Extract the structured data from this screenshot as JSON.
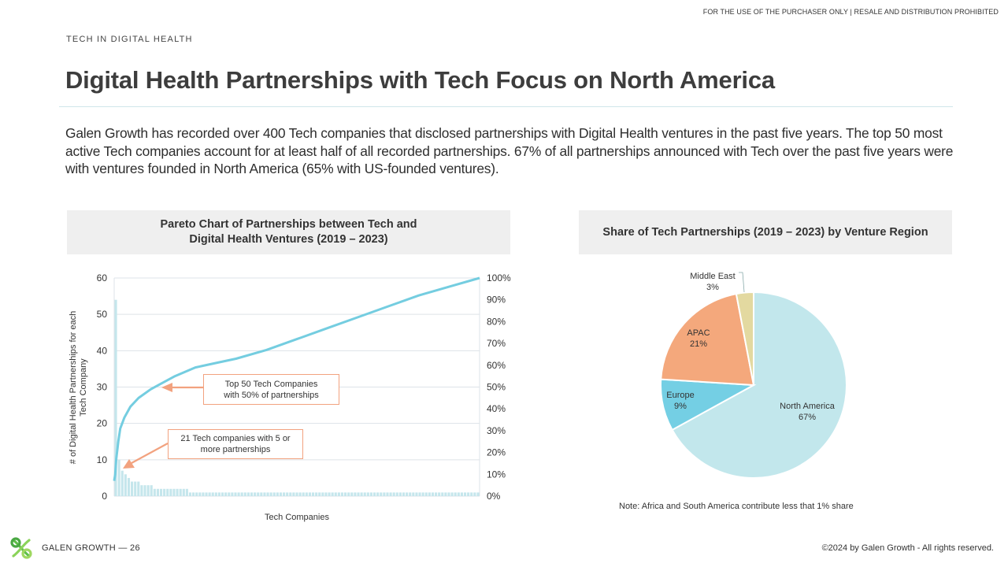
{
  "header": {
    "notice": "FOR THE USE OF THE PURCHASER ONLY | RESALE AND DISTRIBUTION PROHIBITED",
    "section_label": "TECH IN DIGITAL HEALTH",
    "title": "Digital Health Partnerships with Tech Focus on North America",
    "intro": "Galen Growth has recorded over 400 Tech companies that disclosed partnerships with Digital Health ventures in the past five years. The top 50 most active Tech companies account for at least half of all recorded partnerships. 67% of all partnerships announced with Tech over the past five years were with ventures founded in North America (65% with US-founded ventures)."
  },
  "pareto": {
    "title_line1": "Pareto Chart of Partnerships between Tech and",
    "title_line2": "Digital Health Ventures (2019 – 2023)",
    "callout_top_line1": "Top 50 Tech Companies",
    "callout_top_line2": "with 50% of partnerships",
    "callout_bottom_line1": "21 Tech companies with 5 or",
    "callout_bottom_line2": "more partnerships"
  },
  "pie": {
    "title": "Share of Tech Partnerships (2019 – 2023) by Venture Region",
    "note": "Note: Africa and South America contribute less that 1% share"
  },
  "footer": {
    "brand": "GALEN GROWTH  —  26",
    "copyright": "©2024 by Galen Growth  - All rights reserved."
  },
  "colors": {
    "bar": "#c5e6ec",
    "line": "#74cde0",
    "arrow": "#f2a27f",
    "north_america": "#c2e7ec",
    "europe": "#74cfe4",
    "apac": "#f4a87c",
    "middle_east": "#e3d9a0"
  },
  "chart_data": [
    {
      "type": "bar",
      "title": "Pareto Chart of Partnerships between Tech and Digital Health Ventures (2019 – 2023)",
      "xlabel": "Tech Companies",
      "ylabel": "# of Digital Health Partnerships for each Tech Company",
      "ylim": [
        0,
        60
      ],
      "yticks": [
        "0",
        "10",
        "20",
        "30",
        "40",
        "50",
        "60"
      ],
      "y2lim": [
        0,
        100
      ],
      "y2ticks": [
        "0%",
        "10%",
        "20%",
        "30%",
        "40%",
        "50%",
        "60%",
        "70%",
        "80%",
        "90%",
        "100%"
      ],
      "grid": true,
      "bar_groups": [
        {
          "count": 1,
          "value": 54
        },
        {
          "count": 1,
          "value": 10
        },
        {
          "count": 1,
          "value": 7
        },
        {
          "count": 1,
          "value": 6
        },
        {
          "count": 1,
          "value": 5
        },
        {
          "count": 3,
          "value": 4
        },
        {
          "count": 4,
          "value": 3
        },
        {
          "count": 11,
          "value": 2
        },
        {
          "count": 90,
          "value": 1
        }
      ],
      "series": [
        {
          "name": "",
          "type": "line",
          "axis": "right",
          "points": [
            [
              0,
              7
            ],
            [
              0.5,
              10
            ],
            [
              1,
              17
            ],
            [
              2,
              25
            ],
            [
              3,
              31
            ],
            [
              5,
              36
            ],
            [
              8,
              41
            ],
            [
              12,
              45
            ],
            [
              18,
              49
            ],
            [
              22,
              51
            ],
            [
              30,
              55
            ],
            [
              40,
              59
            ],
            [
              50,
              61
            ],
            [
              60,
              63
            ],
            [
              75,
              67
            ],
            [
              90,
              72
            ],
            [
              105,
              77
            ],
            [
              120,
              82
            ],
            [
              135,
              87
            ],
            [
              150,
              92
            ],
            [
              165,
              96
            ],
            [
              180,
              100
            ]
          ],
          "x_max": 180
        }
      ]
    },
    {
      "type": "pie",
      "title": "Share of Tech Partnerships (2019 – 2023) by Venture Region",
      "labels": [
        "North America",
        "Europe",
        "APAC",
        "Middle East"
      ],
      "values": [
        67,
        9,
        21,
        3
      ],
      "display": [
        "67%",
        "9%",
        "21%",
        "3%"
      ]
    }
  ]
}
